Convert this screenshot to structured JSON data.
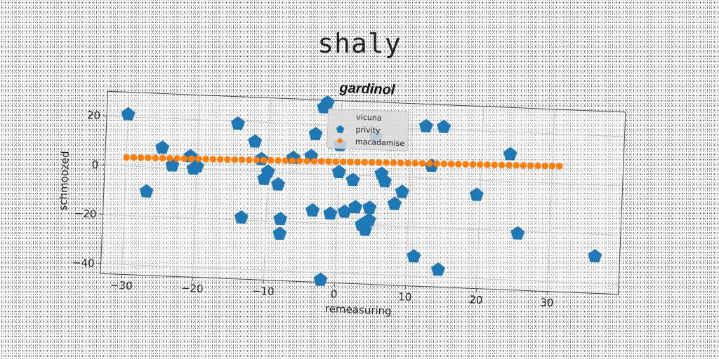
{
  "suptitle": "shaly",
  "chart_data": {
    "type": "scatter",
    "title": "gardinol",
    "xlabel": "remeasuring",
    "ylabel": "schmoozed",
    "xlim": [
      -33,
      40
    ],
    "ylim": [
      -44,
      30
    ],
    "xticks": [
      -30,
      -20,
      -10,
      0,
      10,
      20,
      30
    ],
    "xtick_labels": [
      "−30",
      "−20",
      "−10",
      "0",
      "10",
      "20",
      "30"
    ],
    "yticks": [
      -40,
      -20,
      0,
      20
    ],
    "ytick_labels": [
      "−40",
      "−20",
      "0",
      "20"
    ],
    "grid": true,
    "legend_position": "upper-center",
    "legend": [
      "vicuna",
      "privity",
      "macadamise"
    ],
    "series": [
      {
        "name": "privity",
        "marker": "pentagon",
        "color": "#1f77b4",
        "points": [
          [
            -30,
            21
          ],
          [
            -27,
            -10
          ],
          [
            -25,
            8
          ],
          [
            -23.5,
            1
          ],
          [
            -21,
            5
          ],
          [
            -20.5,
            0
          ],
          [
            -20,
            1
          ],
          [
            -14.5,
            19
          ],
          [
            -13.5,
            -19
          ],
          [
            -12,
            12
          ],
          [
            -11,
            5
          ],
          [
            -10.5,
            -3
          ],
          [
            -10,
            0
          ],
          [
            -8.5,
            -5
          ],
          [
            -8,
            -19
          ],
          [
            -8,
            -25
          ],
          [
            -6.5,
            6
          ],
          [
            -4,
            7
          ],
          [
            -3.5,
            -15
          ],
          [
            -3.5,
            16
          ],
          [
            -2.5,
            27
          ],
          [
            -2,
            29
          ],
          [
            -2,
            -43
          ],
          [
            -1,
            -16
          ],
          [
            0,
            1
          ],
          [
            0,
            12
          ],
          [
            1,
            -15
          ],
          [
            2,
            -2
          ],
          [
            2.5,
            -13
          ],
          [
            3.5,
            -20
          ],
          [
            4,
            -22
          ],
          [
            4.5,
            -13
          ],
          [
            4.5,
            -18
          ],
          [
            5,
            16
          ],
          [
            6,
            1
          ],
          [
            6.5,
            -2
          ],
          [
            8,
            -11
          ],
          [
            9,
            -6
          ],
          [
            11,
            -32
          ],
          [
            12,
            21
          ],
          [
            13,
            5
          ],
          [
            14.5,
            21
          ],
          [
            14.5,
            -37
          ],
          [
            19.5,
            -6
          ],
          [
            24,
            11
          ],
          [
            25.5,
            -21
          ],
          [
            36.5,
            -29
          ]
        ]
      },
      {
        "name": "macadamise",
        "marker": "circle",
        "color": "#ff7f0e",
        "x_start": -30,
        "x_end": 31,
        "count": 61,
        "y_start": 3.5,
        "y_end": 7
      }
    ]
  }
}
